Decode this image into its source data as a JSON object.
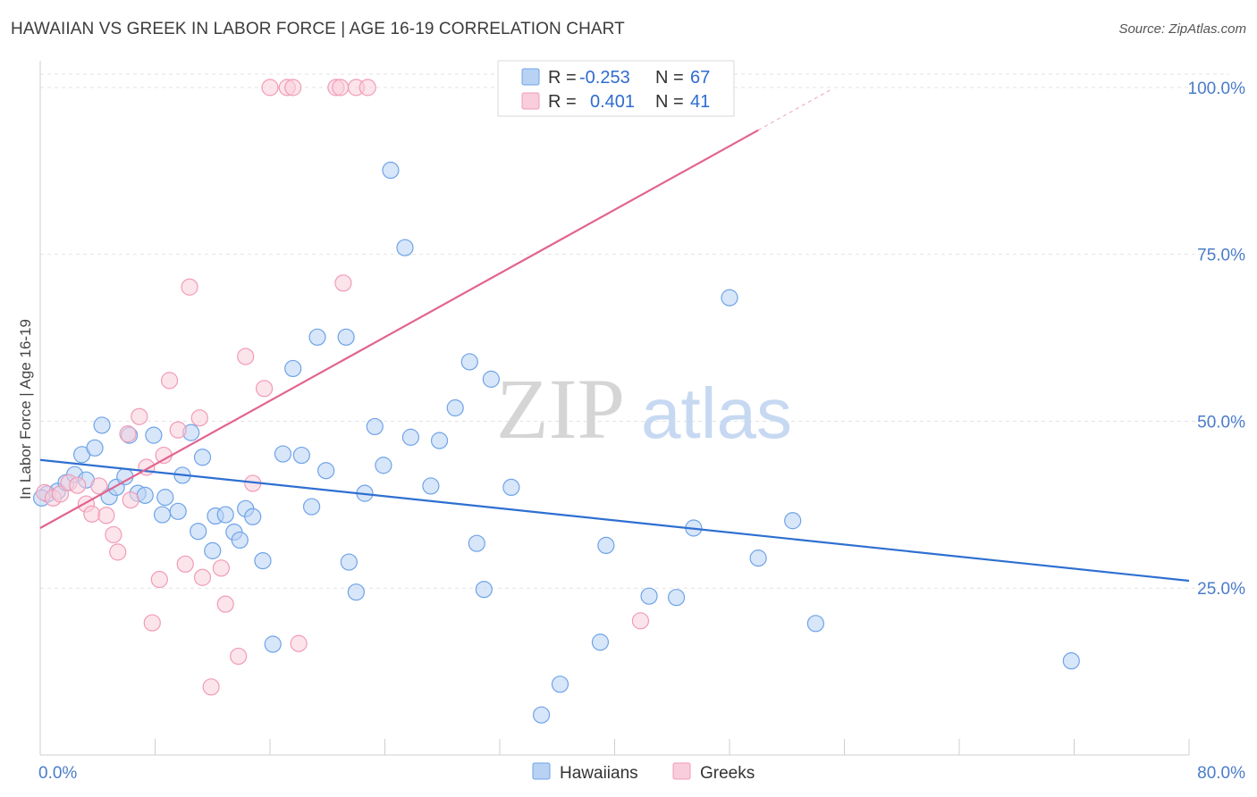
{
  "title": "HAWAIIAN VS GREEK IN LABOR FORCE | AGE 16-19 CORRELATION CHART",
  "source": "Source: ZipAtlas.com",
  "watermark": {
    "zip": "ZIP",
    "atlas": "atlas"
  },
  "chart_data": {
    "type": "scatter",
    "ylabel": "In Labor Force | Age 16-19",
    "xlim": [
      0,
      80
    ],
    "ylim": [
      0,
      104
    ],
    "x_ticks": [
      {
        "value": 0,
        "label": "0.0%"
      },
      {
        "value": 80,
        "label": "80.0%"
      }
    ],
    "y_ticks": [
      {
        "value": 25,
        "label": "25.0%"
      },
      {
        "value": 50,
        "label": "50.0%"
      },
      {
        "value": 75,
        "label": "75.0%"
      },
      {
        "value": 100,
        "label": "100.0%"
      }
    ],
    "grid": true,
    "legend": {
      "placement": "top-center",
      "rows": [
        {
          "r_label": "R =",
          "r_value": "-0.253",
          "n_label": "N =",
          "n_value": "67",
          "color": "#6ea3e8"
        },
        {
          "r_label": "R =",
          "r_value": "0.401",
          "n_label": "N =",
          "n_value": "41",
          "color": "#f19bb7"
        }
      ]
    },
    "series": [
      {
        "name": "Hawaiians",
        "color": "#6ea3e8",
        "fill": "#b8d2f4",
        "trend": {
          "x0": 0,
          "y0": 44.2,
          "x1": 80,
          "y1": 26.1,
          "color": "#2e6fd1"
        },
        "points": [
          [
            0.5,
            39.1
          ],
          [
            1.2,
            39.5
          ],
          [
            1.8,
            40.8
          ],
          [
            2.4,
            42.0
          ],
          [
            2.9,
            45.0
          ],
          [
            3.2,
            41.2
          ],
          [
            3.8,
            46.0
          ],
          [
            4.3,
            49.4
          ],
          [
            4.8,
            38.7
          ],
          [
            5.3,
            40.1
          ],
          [
            5.9,
            41.7
          ],
          [
            6.2,
            47.9
          ],
          [
            6.8,
            39.2
          ],
          [
            7.3,
            38.9
          ],
          [
            7.9,
            47.9
          ],
          [
            8.5,
            36.0
          ],
          [
            8.7,
            38.6
          ],
          [
            9.6,
            36.5
          ],
          [
            9.9,
            41.9
          ],
          [
            10.5,
            48.3
          ],
          [
            11.0,
            33.5
          ],
          [
            11.3,
            44.6
          ],
          [
            12.0,
            30.6
          ],
          [
            12.2,
            35.8
          ],
          [
            12.9,
            36.0
          ],
          [
            13.5,
            33.4
          ],
          [
            13.9,
            32.2
          ],
          [
            14.3,
            36.9
          ],
          [
            14.8,
            35.7
          ],
          [
            15.5,
            29.1
          ],
          [
            16.2,
            16.6
          ],
          [
            16.9,
            45.1
          ],
          [
            17.6,
            57.9
          ],
          [
            18.2,
            44.9
          ],
          [
            18.9,
            37.2
          ],
          [
            19.3,
            62.6
          ],
          [
            19.9,
            42.6
          ],
          [
            21.3,
            62.6
          ],
          [
            21.5,
            28.9
          ],
          [
            22.0,
            24.4
          ],
          [
            22.6,
            39.2
          ],
          [
            23.3,
            49.2
          ],
          [
            23.9,
            43.4
          ],
          [
            24.4,
            87.6
          ],
          [
            25.4,
            76.0
          ],
          [
            25.8,
            47.6
          ],
          [
            27.2,
            40.3
          ],
          [
            27.8,
            47.1
          ],
          [
            28.9,
            52.0
          ],
          [
            29.9,
            58.9
          ],
          [
            30.4,
            31.7
          ],
          [
            30.9,
            24.8
          ],
          [
            31.4,
            56.3
          ],
          [
            32.8,
            40.1
          ],
          [
            34.9,
            6.0
          ],
          [
            36.2,
            10.6
          ],
          [
            39.0,
            16.9
          ],
          [
            39.4,
            31.4
          ],
          [
            42.4,
            23.8
          ],
          [
            44.3,
            23.6
          ],
          [
            45.5,
            34.0
          ],
          [
            48.0,
            68.5
          ],
          [
            50.0,
            29.5
          ],
          [
            52.4,
            35.1
          ],
          [
            54.0,
            19.7
          ],
          [
            71.8,
            14.1
          ],
          [
            0.1,
            38.5
          ]
        ]
      },
      {
        "name": "Greeks",
        "color": "#f19bb7",
        "fill": "#f9cddb",
        "trend": {
          "x0": 0,
          "y0": 34.0,
          "x1": 50,
          "y1": 93.6,
          "dash_to_x": 55,
          "dash_to_y": 99.6,
          "color": "#e2648f"
        },
        "points": [
          [
            0.3,
            39.3
          ],
          [
            0.9,
            38.5
          ],
          [
            1.4,
            39.1
          ],
          [
            2.0,
            40.8
          ],
          [
            2.6,
            40.4
          ],
          [
            3.2,
            37.6
          ],
          [
            3.6,
            36.1
          ],
          [
            4.1,
            40.3
          ],
          [
            4.6,
            35.9
          ],
          [
            5.1,
            33.0
          ],
          [
            5.4,
            30.4
          ],
          [
            6.1,
            48.1
          ],
          [
            6.3,
            38.2
          ],
          [
            6.9,
            50.7
          ],
          [
            7.4,
            43.1
          ],
          [
            7.8,
            19.8
          ],
          [
            8.3,
            26.3
          ],
          [
            8.6,
            44.9
          ],
          [
            9.0,
            56.1
          ],
          [
            9.6,
            48.7
          ],
          [
            10.1,
            28.6
          ],
          [
            10.4,
            70.1
          ],
          [
            11.1,
            50.5
          ],
          [
            11.3,
            26.6
          ],
          [
            11.9,
            10.2
          ],
          [
            12.6,
            28.0
          ],
          [
            12.9,
            22.6
          ],
          [
            13.8,
            14.8
          ],
          [
            14.3,
            59.7
          ],
          [
            14.8,
            40.7
          ],
          [
            15.6,
            54.9
          ],
          [
            16.0,
            100.0
          ],
          [
            17.2,
            100.0
          ],
          [
            17.6,
            100.0
          ],
          [
            18.0,
            16.7
          ],
          [
            20.6,
            100.0
          ],
          [
            20.9,
            100.0
          ],
          [
            21.1,
            70.7
          ],
          [
            22.0,
            100.0
          ],
          [
            22.8,
            100.0
          ],
          [
            41.8,
            20.1
          ]
        ]
      }
    ]
  },
  "bottom_legend": [
    {
      "label": "Hawaiians",
      "color": "#6ea3e8",
      "fill": "#b8d2f4"
    },
    {
      "label": "Greeks",
      "color": "#f19bb7",
      "fill": "#f9cddb"
    }
  ]
}
